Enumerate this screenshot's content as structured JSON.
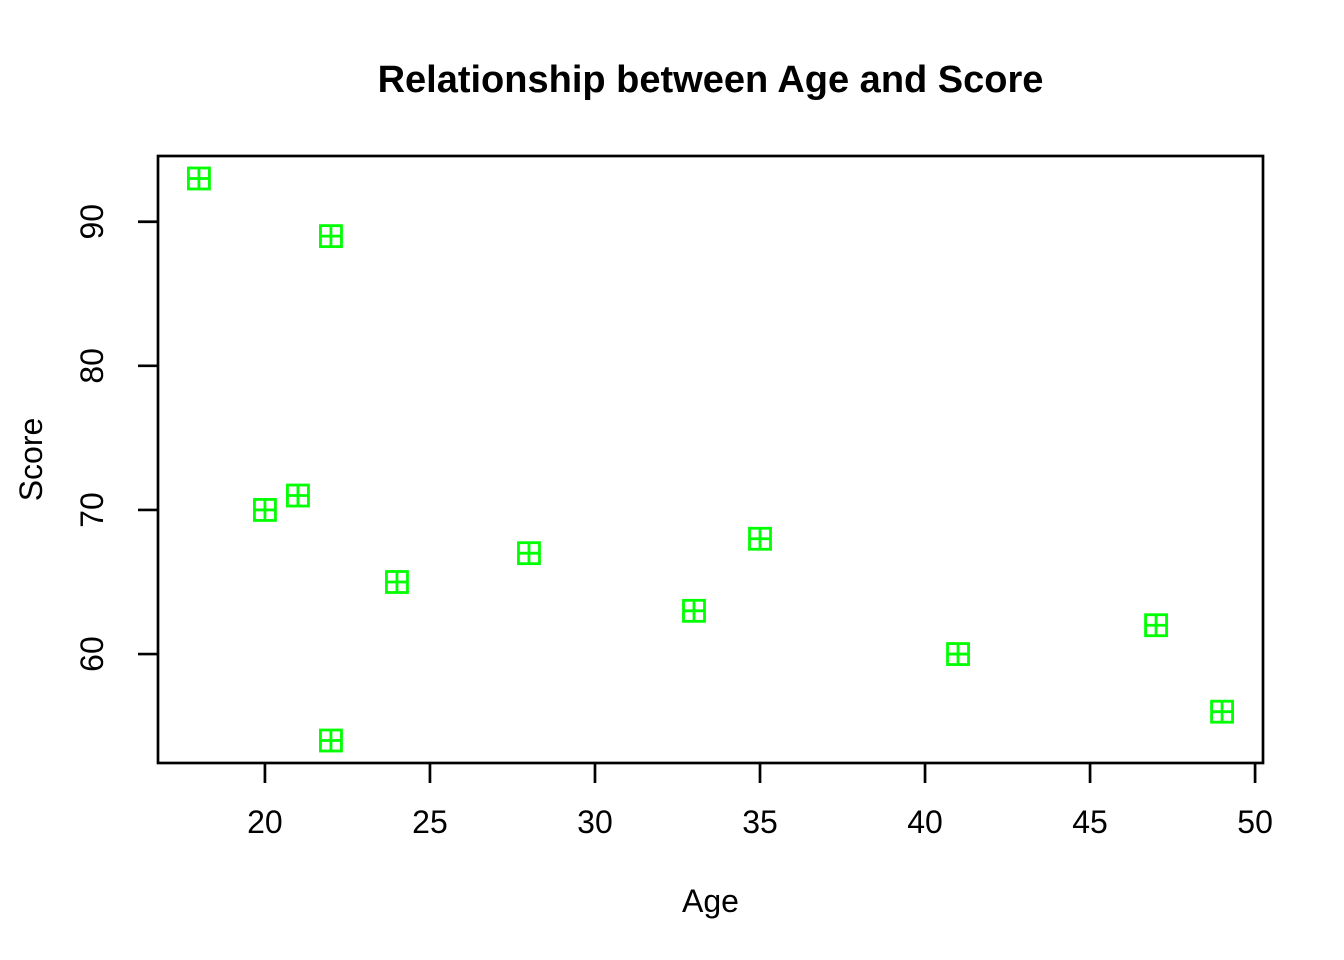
{
  "chart_data": {
    "type": "scatter",
    "title": "Relationship between Age and Score",
    "xlabel": "Age",
    "ylabel": "Score",
    "points": [
      {
        "x": 18,
        "y": 93
      },
      {
        "x": 20,
        "y": 70
      },
      {
        "x": 21,
        "y": 71
      },
      {
        "x": 22,
        "y": 89
      },
      {
        "x": 22,
        "y": 54
      },
      {
        "x": 24,
        "y": 65
      },
      {
        "x": 28,
        "y": 67
      },
      {
        "x": 33,
        "y": 63
      },
      {
        "x": 35,
        "y": 68
      },
      {
        "x": 41,
        "y": 60
      },
      {
        "x": 47,
        "y": 62
      },
      {
        "x": 49,
        "y": 56
      }
    ],
    "x_ticks": [
      20,
      25,
      30,
      35,
      40,
      45,
      50
    ],
    "y_ticks": [
      60,
      70,
      80,
      90
    ],
    "xlim": [
      16.76,
      50.24
    ],
    "ylim": [
      52.44,
      94.56
    ],
    "grid": false,
    "legend": null,
    "marker": {
      "shape": "square-plus",
      "color": "#00FF00",
      "size": 21
    },
    "axis_color": "#000000",
    "background": "#FFFFFF"
  }
}
